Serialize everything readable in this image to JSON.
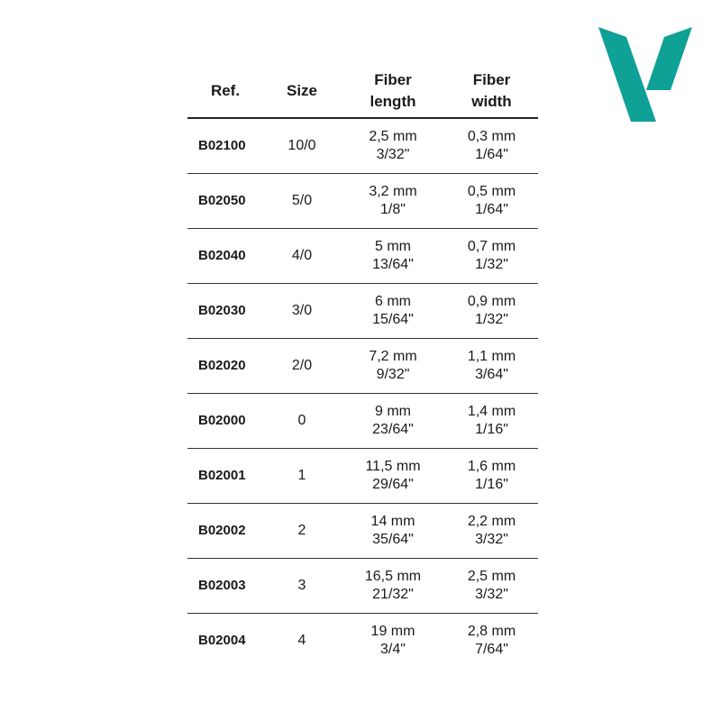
{
  "brand_color": "#0fa096",
  "logo": {
    "icon": "v-logo"
  },
  "table": {
    "headers": [
      "Ref.",
      "Size",
      "Fiber length",
      "Fiber width"
    ],
    "header_lines": [
      [
        "Ref."
      ],
      [
        "Size"
      ],
      [
        "Fiber",
        "length"
      ],
      [
        "Fiber",
        "width"
      ]
    ],
    "rows": [
      {
        "ref": "B02100",
        "size": "10/0",
        "length_mm": "2,5 mm",
        "length_in": "3/32\"",
        "width_mm": "0,3 mm",
        "width_in": "1/64\""
      },
      {
        "ref": "B02050",
        "size": "5/0",
        "length_mm": "3,2 mm",
        "length_in": "1/8\"",
        "width_mm": "0,5 mm",
        "width_in": "1/64\""
      },
      {
        "ref": "B02040",
        "size": "4/0",
        "length_mm": "5 mm",
        "length_in": "13/64\"",
        "width_mm": "0,7 mm",
        "width_in": "1/32\""
      },
      {
        "ref": "B02030",
        "size": "3/0",
        "length_mm": "6 mm",
        "length_in": "15/64\"",
        "width_mm": "0,9 mm",
        "width_in": "1/32\""
      },
      {
        "ref": "B02020",
        "size": "2/0",
        "length_mm": "7,2 mm",
        "length_in": "9/32\"",
        "width_mm": "1,1 mm",
        "width_in": "3/64\""
      },
      {
        "ref": "B02000",
        "size": "0",
        "length_mm": "9 mm",
        "length_in": "23/64\"",
        "width_mm": "1,4 mm",
        "width_in": "1/16\""
      },
      {
        "ref": "B02001",
        "size": "1",
        "length_mm": "11,5 mm",
        "length_in": "29/64\"",
        "width_mm": "1,6 mm",
        "width_in": "1/16\""
      },
      {
        "ref": "B02002",
        "size": "2",
        "length_mm": "14 mm",
        "length_in": "35/64\"",
        "width_mm": "2,2 mm",
        "width_in": "3/32\""
      },
      {
        "ref": "B02003",
        "size": "3",
        "length_mm": "16,5 mm",
        "length_in": "21/32\"",
        "width_mm": "2,5 mm",
        "width_in": "3/32\""
      },
      {
        "ref": "B02004",
        "size": "4",
        "length_mm": "19 mm",
        "length_in": "3/4\"",
        "width_mm": "2,8 mm",
        "width_in": "7/64\""
      }
    ]
  }
}
